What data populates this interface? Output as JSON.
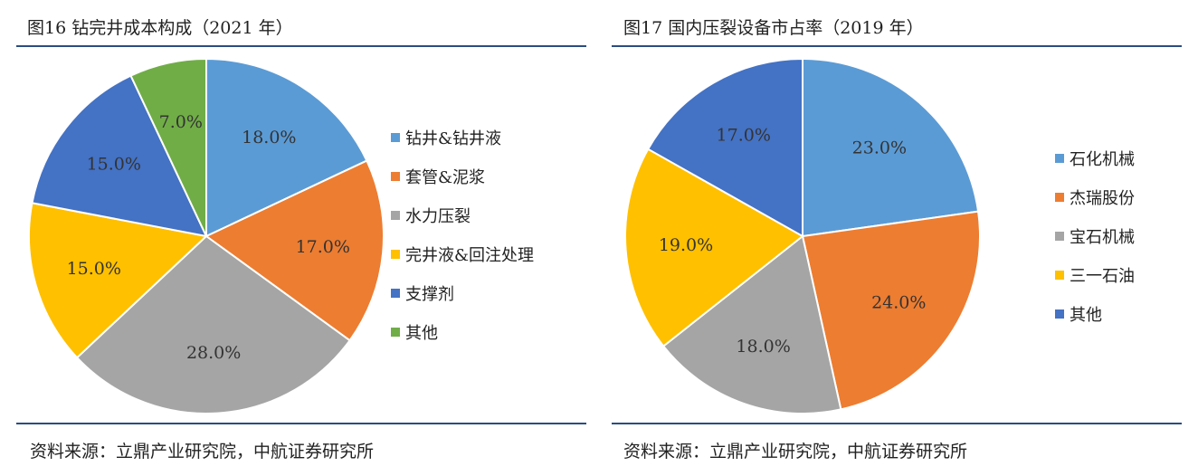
{
  "charts": [
    {
      "title": "图16  钻完井成本构成（2021 年）",
      "source": "资料来源：立鼎产业研究院，中航证券研究所"
    },
    {
      "title": "图17  国内压裂设备市占率（2019 年）",
      "source": "资料来源：立鼎产业研究院，中航证券研究所"
    }
  ],
  "chart_data": [
    {
      "type": "pie",
      "title": "图16  钻完井成本构成（2021 年）",
      "categories": [
        "钻井&钻井液",
        "套管&泥浆",
        "水力压裂",
        "完井液&回注处理",
        "支撑剂",
        "其他"
      ],
      "values": [
        18.0,
        17.0,
        28.0,
        15.0,
        15.0,
        7.0
      ],
      "labels": [
        "18.0%",
        "17.0%",
        "28.0%",
        "15.0%",
        "15.0%",
        "7.0%"
      ],
      "colors": [
        "#5b9bd5",
        "#ed7d31",
        "#a5a5a5",
        "#ffc000",
        "#4472c4",
        "#70ad47"
      ],
      "legend_position": "right"
    },
    {
      "type": "pie",
      "title": "图17  国内压裂设备市占率（2019 年）",
      "categories": [
        "石化机械",
        "杰瑞股份",
        "宝石机械",
        "三一石油",
        "其他"
      ],
      "values": [
        23.0,
        24.0,
        18.0,
        19.0,
        17.0
      ],
      "labels": [
        "23.0%",
        "24.0%",
        "18.0%",
        "19.0%",
        "17.0%"
      ],
      "colors": [
        "#5b9bd5",
        "#ed7d31",
        "#a5a5a5",
        "#ffc000",
        "#4472c4"
      ],
      "legend_position": "right"
    }
  ]
}
